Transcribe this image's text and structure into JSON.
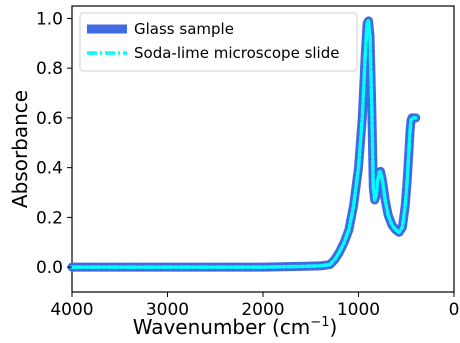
{
  "chart_data": {
    "type": "line",
    "xlabel": "Wavenumber (cm",
    "xlabel_superscript": "−1",
    "xlabel_suffix": ")",
    "ylabel": "Absorbance",
    "xlim": [
      4000,
      0
    ],
    "ylim": [
      -0.1,
      1.05
    ],
    "x_ticks": [
      4000,
      3000,
      2000,
      1000,
      0
    ],
    "x_tick_labels": [
      "4000",
      "3000",
      "2000",
      "1000",
      "0"
    ],
    "y_ticks": [
      0.0,
      0.2,
      0.4,
      0.6,
      0.8,
      1.0
    ],
    "y_tick_labels": [
      "0.0",
      "0.2",
      "0.4",
      "0.6",
      "0.8",
      "1.0"
    ],
    "grid": false,
    "legend_position": "top-left",
    "series": [
      {
        "name": "Glass sample",
        "color": "#4169e1",
        "style": "solid",
        "x": [
          4000,
          3500,
          3000,
          2500,
          2000,
          1600,
          1400,
          1300,
          1250,
          1200,
          1150,
          1100,
          1050,
          1000,
          960,
          930,
          910,
          895,
          880,
          860,
          845,
          830,
          815,
          800,
          785,
          770,
          750,
          720,
          690,
          650,
          610,
          575,
          540,
          510,
          490,
          470,
          460,
          450,
          440,
          420,
          400
        ],
        "y": [
          0.0,
          0.0,
          0.0,
          0.0,
          0.0,
          0.003,
          0.005,
          0.01,
          0.03,
          0.06,
          0.1,
          0.15,
          0.25,
          0.4,
          0.6,
          0.85,
          0.98,
          0.99,
          0.93,
          0.62,
          0.32,
          0.27,
          0.29,
          0.34,
          0.38,
          0.385,
          0.35,
          0.27,
          0.21,
          0.17,
          0.15,
          0.14,
          0.16,
          0.25,
          0.35,
          0.48,
          0.55,
          0.59,
          0.6,
          0.6,
          0.6
        ]
      },
      {
        "name": "Soda-lime microscope slide",
        "color": "#00ffff",
        "style": "dashdot",
        "x": [
          4000,
          3500,
          3000,
          2500,
          2000,
          1600,
          1400,
          1300,
          1250,
          1200,
          1150,
          1100,
          1050,
          1000,
          960,
          930,
          910,
          895,
          880,
          860,
          845,
          830,
          815,
          800,
          785,
          770,
          750,
          720,
          690,
          650,
          610,
          575,
          540,
          510,
          490,
          470,
          460,
          450,
          440,
          420,
          400
        ],
        "y": [
          0.0,
          0.0,
          0.0,
          0.0,
          0.0,
          0.003,
          0.005,
          0.01,
          0.03,
          0.06,
          0.1,
          0.15,
          0.25,
          0.4,
          0.6,
          0.85,
          0.98,
          0.99,
          0.93,
          0.62,
          0.32,
          0.27,
          0.29,
          0.34,
          0.38,
          0.385,
          0.35,
          0.27,
          0.21,
          0.17,
          0.15,
          0.14,
          0.16,
          0.25,
          0.35,
          0.48,
          0.55,
          0.59,
          0.6,
          0.6,
          0.6
        ]
      }
    ]
  }
}
